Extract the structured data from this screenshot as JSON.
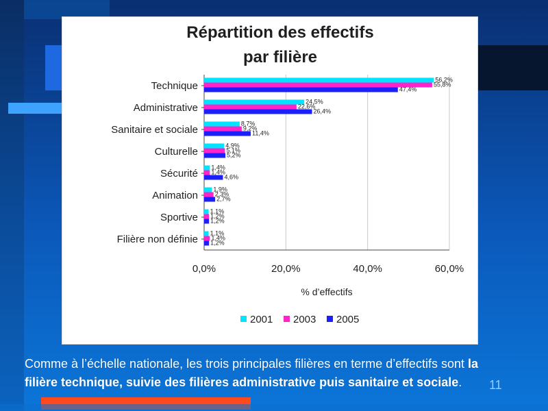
{
  "slide": {
    "caption_before": "Comme à l’échelle nationale, les trois principales filières en terme d’effectifs sont ",
    "caption_bold": "la filière technique, suivie des filières administrative puis sanitaire et sociale",
    "caption_after": ".",
    "slide_number": "11"
  },
  "chart_data": {
    "type": "bar",
    "orientation": "horizontal",
    "title_line1": "Répartition des effectifs",
    "title_line2": "par filière",
    "xlabel": "% d’effectifs",
    "ylabel": "",
    "xlim": [
      0,
      60
    ],
    "x_ticks": [
      "0,0%",
      "20,0%",
      "40,0%",
      "60,0%"
    ],
    "legend_position": "bottom",
    "categories": [
      "Technique",
      "Administrative",
      "Sanitaire et sociale",
      "Culturelle",
      "Sécurité",
      "Animation",
      "Sportive",
      "Filière non définie"
    ],
    "series": [
      {
        "name": "2001",
        "color": "#00e5ff",
        "values": [
          56.2,
          24.5,
          8.7,
          4.9,
          1.4,
          1.9,
          1.1,
          1.1
        ],
        "labels": [
          "56,2%",
          "24,5%",
          "8,7%",
          "4,9%",
          "1,4%",
          "1,9%",
          "1,1%",
          "1,1%"
        ]
      },
      {
        "name": "2003",
        "color": "#ff24c9",
        "values": [
          55.8,
          22.6,
          9.2,
          5.1,
          1.4,
          2.3,
          1.2,
          1.4
        ],
        "labels": [
          "55,8%",
          "22,6%",
          "9,2%",
          "5,1%",
          "1,4%",
          "2,3%",
          "1,2%",
          "1,4%"
        ]
      },
      {
        "name": "2005",
        "color": "#1b20ff",
        "values": [
          47.4,
          26.4,
          11.4,
          5.2,
          4.6,
          2.7,
          1.2,
          1.2
        ],
        "labels": [
          "47,4%",
          "26,4%",
          "11,4%",
          "5,2%",
          "4,6%",
          "2,7%",
          "1,2%",
          "1,2%"
        ]
      }
    ]
  }
}
